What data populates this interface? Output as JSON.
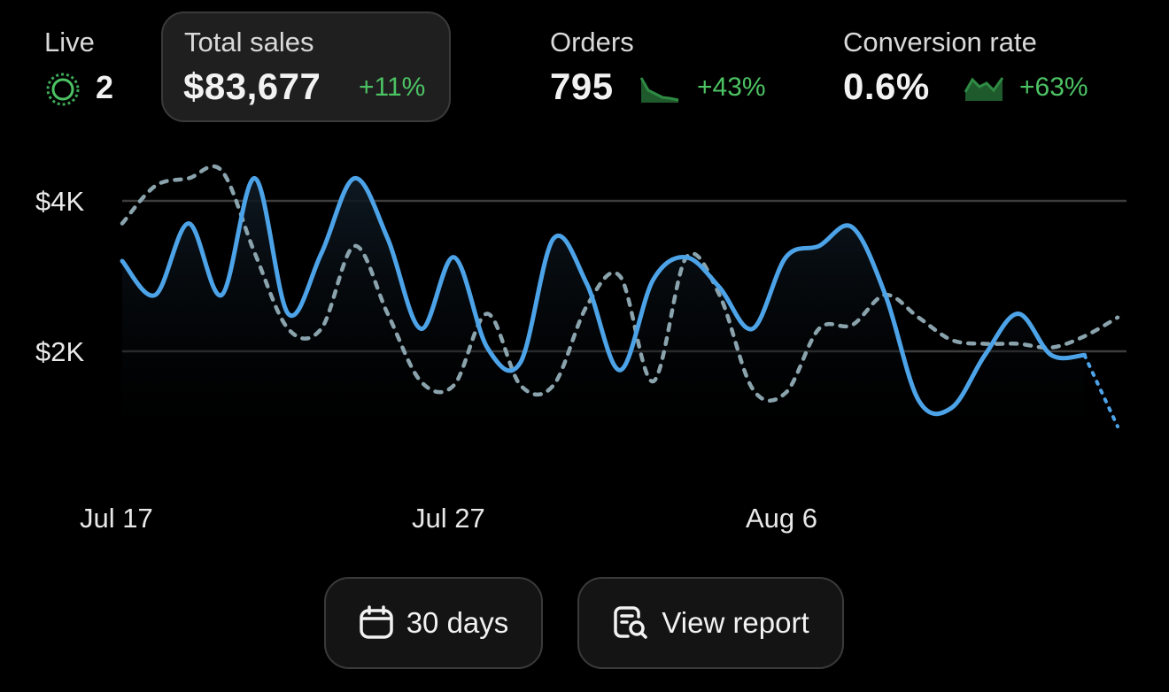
{
  "metrics": {
    "live": {
      "label": "Live",
      "value": "2"
    },
    "total_sales": {
      "label": "Total sales",
      "value": "$83,677",
      "delta": "+11%"
    },
    "orders": {
      "label": "Orders",
      "value": "795",
      "delta": "+43%"
    },
    "conversion": {
      "label": "Conversion rate",
      "value": "0.6%",
      "delta": "+63%"
    }
  },
  "colors": {
    "accent": "#4da3e8",
    "comparison": "#8aa3ad",
    "positive": "#4cc263",
    "background": "#000000"
  },
  "buttons": {
    "range_label": "30 days",
    "report_label": "View report"
  },
  "icons": {
    "live": "live-pulse-icon",
    "range": "calendar-icon",
    "report": "report-search-icon"
  },
  "chart_data": {
    "type": "line",
    "x_ticks": [
      "Jul 17",
      "Jul 27",
      "Aug 6"
    ],
    "y_ticks": [
      "$2K",
      "$4K"
    ],
    "ylim": [
      0,
      4500
    ],
    "grid": true,
    "series": [
      {
        "values": [
          3200,
          2750,
          3700,
          2750,
          4300,
          2500,
          3300,
          4300,
          3500,
          2300,
          3250,
          2050,
          1850,
          3500,
          2900,
          1750,
          2950,
          3250,
          2850,
          2300,
          3250,
          3400,
          3650,
          2750,
          1350,
          1250,
          1950,
          2500,
          1950,
          1950,
          1000
        ]
      },
      {
        "values": [
          3700,
          4200,
          4300,
          4400,
          3300,
          2300,
          2300,
          3400,
          2500,
          1600,
          1550,
          2500,
          1550,
          1550,
          2600,
          3000,
          1600,
          3250,
          2750,
          1500,
          1450,
          2300,
          2350,
          2750,
          2450,
          2150,
          2100,
          2100,
          2050,
          2200,
          2450
        ]
      }
    ]
  }
}
